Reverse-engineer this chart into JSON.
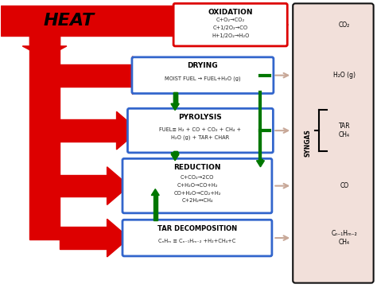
{
  "fig_width": 4.74,
  "fig_height": 3.62,
  "dpi": 100,
  "bg_color": "#ffffff",
  "red": "#dd0000",
  "green": "#007700",
  "blue": "#3366cc",
  "syngas_bg": "#f2e0da",
  "syngas_border": "#111111",
  "light_arrow": "#c8a898",
  "box_titles": [
    "OXIDATION",
    "DRYING",
    "PYROLYSIS",
    "REDUCTION",
    "TAR DECOMPOSITION"
  ],
  "box_lines": [
    [
      "C+O₂→CO₂",
      "C+1/2O₂→CO",
      "H+1/2O₂→H₂O"
    ],
    [
      "MOIST FUEL → FUEL+H₂O (g)"
    ],
    [
      "FUEL≡ H₂ + CO + CO₂ + CH₄ +",
      "H₂O (g) + TAR+ CHAR"
    ],
    [
      "C+CO₂→2CO",
      "C+H₂O→CO+H₂",
      "CO+H₂O→CO₂+H₂",
      "C+2H₂↔CH₄"
    ],
    [
      "CₙHₘ ≡ Cₙ₋₁Hₘ₋₂ +H₂+CH₄+C"
    ]
  ],
  "box_borders": [
    "red",
    "blue",
    "blue",
    "blue",
    "blue"
  ],
  "syngas_labels": [
    "CO₂",
    "H₂O (g)",
    "TAR\nCH₄",
    "CO",
    "Cₙ₋₁Hₘ₋₂\nCH₄"
  ]
}
